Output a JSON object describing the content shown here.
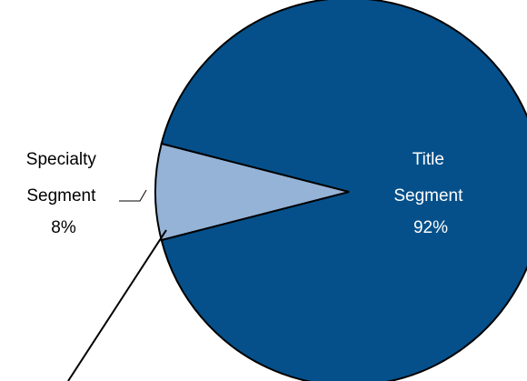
{
  "chart_data": {
    "type": "pie",
    "title": "",
    "slices": [
      {
        "label_lines": [
          "Title",
          "Segment",
          "92%"
        ],
        "value": 92,
        "color": "#05508A",
        "label_color": "#ffffff"
      },
      {
        "label_lines": [
          "Specialty",
          "Segment",
          "8%"
        ],
        "value": 8,
        "color": "#95B3D7",
        "label_color": "#000000"
      }
    ],
    "slice_border_color": "#000000"
  }
}
